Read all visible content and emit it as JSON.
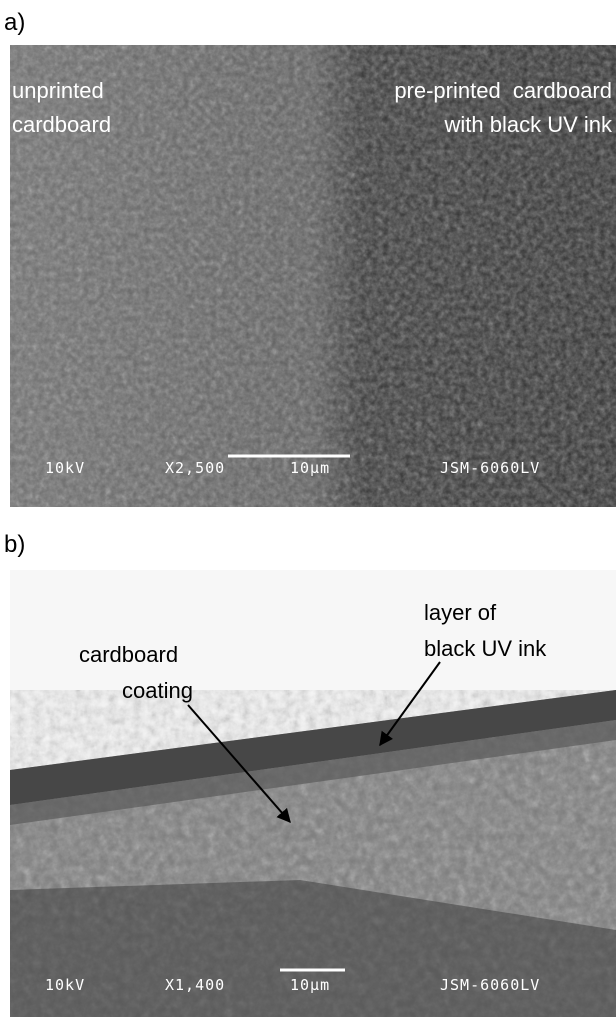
{
  "panels": [
    {
      "label": "a)",
      "annotations": [
        {
          "lines": [
            "unprinted",
            "cardboard"
          ]
        },
        {
          "lines": [
            "pre-printed  cardboard",
            "with black UV ink"
          ]
        }
      ],
      "footer": [
        "10kV",
        "X2,500",
        "10μm",
        "JSM-6060LV"
      ]
    },
    {
      "label": "b)",
      "annotations": [
        {
          "lines": [
            "layer of",
            "black UV ink"
          ]
        },
        {
          "lines": [
            "cardboard",
            "coating"
          ]
        }
      ],
      "footer": [
        "10kV",
        "X1,400",
        "10μm",
        "JSM-6060LV"
      ]
    }
  ]
}
